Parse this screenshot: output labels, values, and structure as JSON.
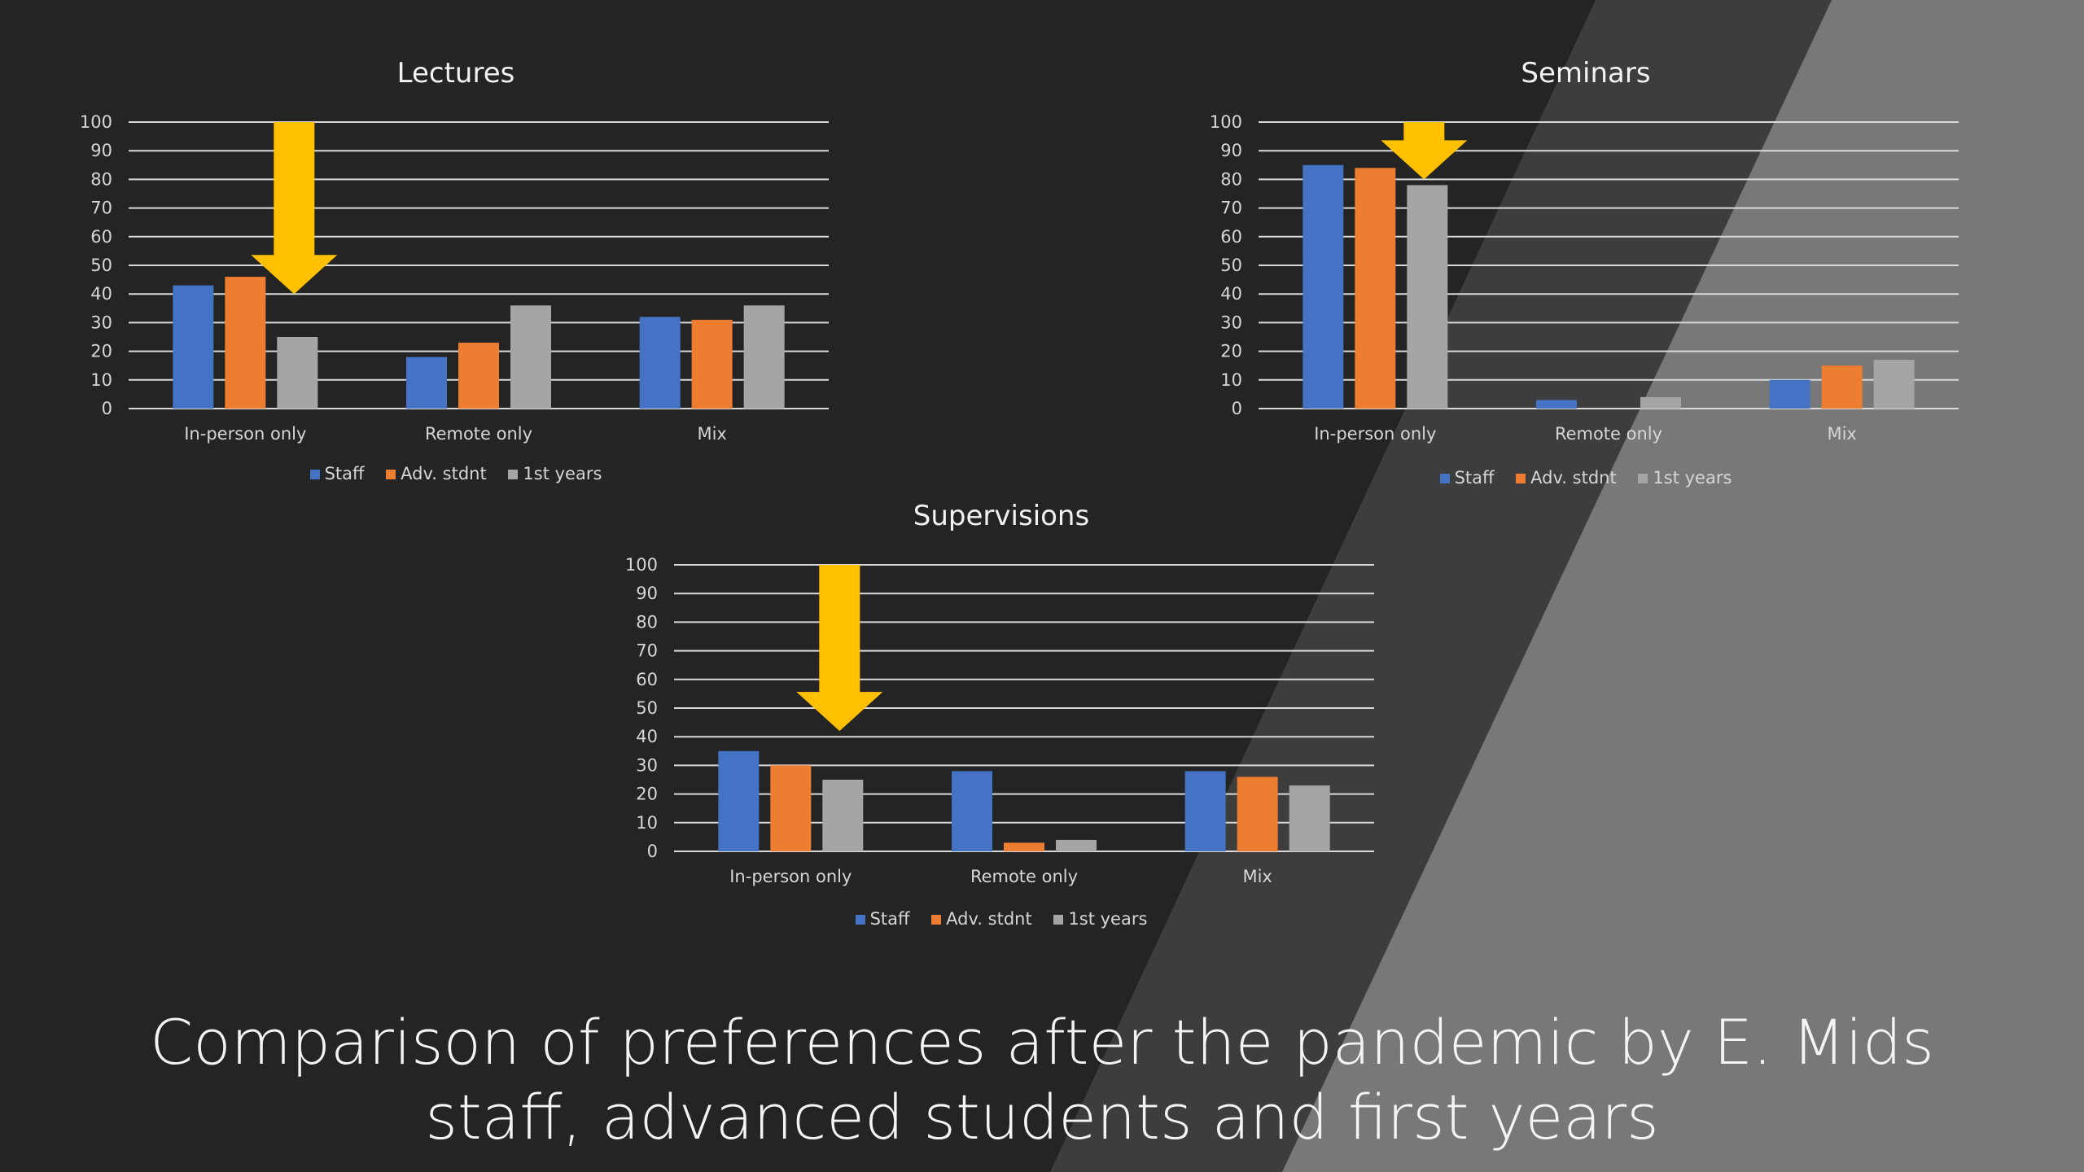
{
  "caption": "Comparison of preferences after the pandemic by E. Mids staff, advanced students and first years",
  "colors": {
    "background": "#242424",
    "gridline": "#d9d9d9",
    "arrow": "#ffc000",
    "series": [
      "#4472c4",
      "#ed7d31",
      "#a5a5a5"
    ]
  },
  "chart_data": [
    {
      "type": "bar",
      "title": "Lectures",
      "categories": [
        "In-person only",
        "Remote only",
        "Mix"
      ],
      "series": [
        {
          "name": "Staff",
          "values": [
            43,
            18,
            32
          ]
        },
        {
          "name": "Adv. stdnt",
          "values": [
            46,
            23,
            31
          ]
        },
        {
          "name": "1st years",
          "values": [
            25,
            36,
            36
          ]
        }
      ],
      "ylim": [
        0,
        100
      ],
      "yticks": [
        "0",
        "10",
        "20",
        "30",
        "40",
        "50",
        "60",
        "70",
        "80",
        "90",
        "100"
      ],
      "grid": true,
      "legend": "bottom",
      "annotation": {
        "type": "arrow-down",
        "category": "In-person only",
        "from": 100,
        "to": 40
      }
    },
    {
      "type": "bar",
      "title": "Seminars",
      "categories": [
        "In-person only",
        "Remote only",
        "Mix"
      ],
      "series": [
        {
          "name": "Staff",
          "values": [
            85,
            3,
            10
          ]
        },
        {
          "name": "Adv. stdnt",
          "values": [
            84,
            0,
            15
          ]
        },
        {
          "name": "1st years",
          "values": [
            78,
            4,
            17
          ]
        }
      ],
      "ylim": [
        0,
        100
      ],
      "yticks": [
        "0",
        "10",
        "20",
        "30",
        "40",
        "50",
        "60",
        "70",
        "80",
        "90",
        "100"
      ],
      "grid": true,
      "legend": "bottom",
      "annotation": {
        "type": "arrow-down",
        "category": "In-person only",
        "from": 100,
        "to": 80
      }
    },
    {
      "type": "bar",
      "title": "Supervisions",
      "categories": [
        "In-person only",
        "Remote only",
        "Mix"
      ],
      "series": [
        {
          "name": "Staff",
          "values": [
            35,
            28,
            28
          ]
        },
        {
          "name": "Adv. stdnt",
          "values": [
            30,
            3,
            26
          ]
        },
        {
          "name": "1st years",
          "values": [
            25,
            4,
            23
          ]
        }
      ],
      "ylim": [
        0,
        100
      ],
      "yticks": [
        "0",
        "10",
        "20",
        "30",
        "40",
        "50",
        "60",
        "70",
        "80",
        "90",
        "100"
      ],
      "grid": true,
      "legend": "bottom",
      "annotation": {
        "type": "arrow-down",
        "category": "In-person only",
        "from": 100,
        "to": 42
      }
    }
  ]
}
